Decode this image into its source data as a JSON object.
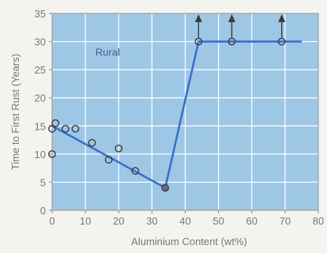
{
  "chart_data": {
    "type": "scatter",
    "xlabel": "Aluminium Content (wt%)",
    "ylabel": "Time to First Rust (Years)",
    "xlim": [
      0,
      80
    ],
    "ylim": [
      0,
      35
    ],
    "x_ticks": [
      0,
      10,
      20,
      30,
      40,
      50,
      60,
      70,
      80
    ],
    "y_ticks": [
      0,
      5,
      10,
      15,
      20,
      25,
      30,
      35
    ],
    "grid": true,
    "annotation": "Rural",
    "colors": {
      "plot_bg": "#9ec7e6",
      "grid": "#ffffff",
      "line": "#3d6fcc",
      "marker_edge": "#3c3c3c",
      "arrow": "#3c3c3c"
    },
    "points": [
      {
        "x": 0,
        "y": 10
      },
      {
        "x": 0,
        "y": 14.5
      },
      {
        "x": 1,
        "y": 15.5
      },
      {
        "x": 4,
        "y": 14.5
      },
      {
        "x": 7,
        "y": 14.5
      },
      {
        "x": 12,
        "y": 12
      },
      {
        "x": 17,
        "y": 9
      },
      {
        "x": 20,
        "y": 11
      },
      {
        "x": 25,
        "y": 7
      },
      {
        "x": 34,
        "y": 4
      },
      {
        "x": 44,
        "y": 30
      },
      {
        "x": 54,
        "y": 30
      },
      {
        "x": 69,
        "y": 30
      }
    ],
    "trend_line": [
      {
        "x": 0,
        "y": 15
      },
      {
        "x": 34,
        "y": 4
      },
      {
        "x": 44,
        "y": 30
      },
      {
        "x": 75,
        "y": 30
      }
    ],
    "lower_bound_points": [
      {
        "x": 44,
        "y": 30
      },
      {
        "x": 54,
        "y": 30
      },
      {
        "x": 69,
        "y": 30
      }
    ]
  }
}
